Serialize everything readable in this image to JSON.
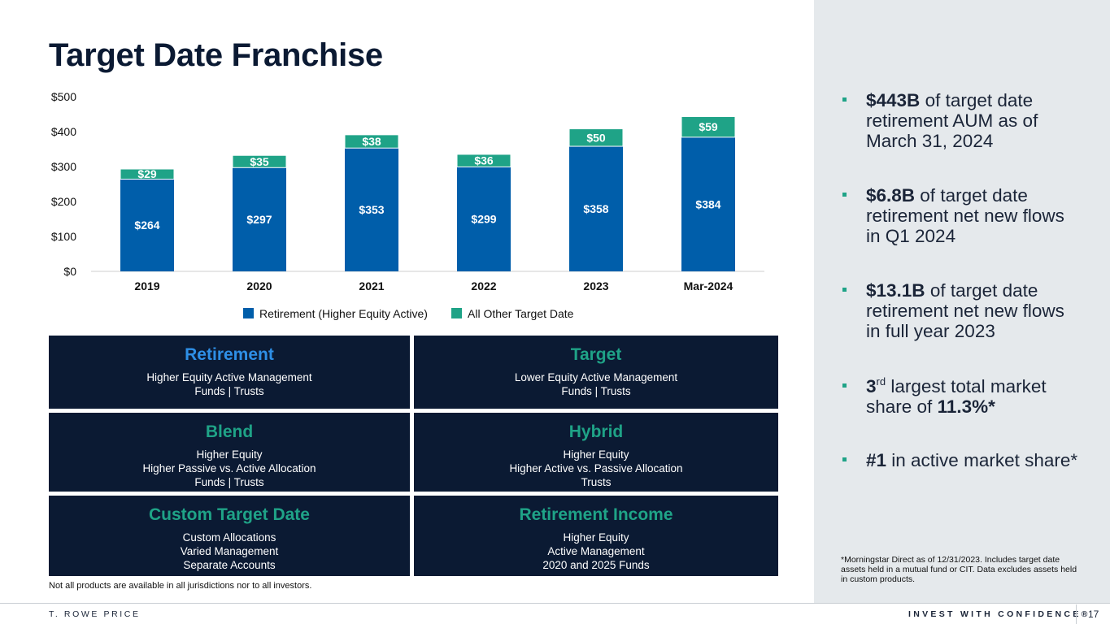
{
  "title": "Target Date Franchise",
  "colors": {
    "navy": "#0b1a33",
    "retirement_blue": "#005eaa",
    "other_teal": "#1fa387",
    "light_blue_text": "#2e8fe6",
    "panel_gray": "#e5e9ec"
  },
  "chart_data": {
    "type": "bar",
    "stacked": true,
    "categories": [
      "2019",
      "2020",
      "2021",
      "2022",
      "2023",
      "Mar-2024"
    ],
    "series": [
      {
        "name": "Retirement (Higher Equity Active)",
        "color": "#005eaa",
        "values": [
          264,
          297,
          353,
          299,
          358,
          384
        ],
        "labels": [
          "$264",
          "$297",
          "$353",
          "$299",
          "$358",
          "$384"
        ]
      },
      {
        "name": "All Other Target Date",
        "color": "#1fa387",
        "values": [
          29,
          35,
          38,
          36,
          50,
          59
        ],
        "labels": [
          "$29",
          "$35",
          "$38",
          "$36",
          "$50",
          "$59"
        ]
      }
    ],
    "ylim": [
      0,
      500
    ],
    "yticks": [
      0,
      100,
      200,
      300,
      400,
      500
    ],
    "ytick_labels": [
      "$0",
      "$100",
      "$200",
      "$300",
      "$400",
      "$500"
    ],
    "grid": false,
    "legend_position": "bottom"
  },
  "boxes": [
    {
      "name": "Retirement",
      "lines": [
        "Higher Equity Active Management",
        "Funds | Trusts"
      ]
    },
    {
      "name": "Target",
      "lines": [
        "Lower Equity Active Management",
        "Funds | Trusts"
      ]
    },
    {
      "name": "Blend",
      "lines": [
        "Higher Equity",
        "Higher Passive vs. Active Allocation",
        "Funds | Trusts"
      ]
    },
    {
      "name": "Hybrid",
      "lines": [
        "Higher Equity",
        "Higher Active vs. Passive Allocation",
        "Trusts"
      ]
    },
    {
      "name": "Custom Target Date",
      "lines": [
        "Custom Allocations",
        "Varied Management",
        "Separate Accounts"
      ]
    },
    {
      "name": "Retirement Income",
      "lines": [
        "Higher Equity",
        "Active Management",
        "2020 and 2025 Funds"
      ]
    }
  ],
  "disclaimer": "Not all products are available in all jurisdictions nor to all investors.",
  "bullets": [
    {
      "bold": "$443B",
      "rest": " of target date retirement AUM as of March 31, 2024"
    },
    {
      "bold": "$6.8B",
      "rest": " of target date retirement net new flows in Q1 2024"
    },
    {
      "bold": "$13.1B",
      "rest": " of target date retirement net new flows in full year 2023"
    },
    {
      "pre": "3",
      "sup": "rd",
      "mid": " largest total market share of ",
      "bold": "11.3%*"
    },
    {
      "bold": "#1",
      "rest": " in active market share*"
    }
  ],
  "footnote": "*Morningstar Direct as of 12/31/2023. Includes target date assets held in a mutual fund or CIT. Data excludes assets held in custom products.",
  "footer": {
    "brand": "T. ROWE PRICE",
    "tagline": "INVEST WITH CONFIDENCE®",
    "page": "17"
  }
}
